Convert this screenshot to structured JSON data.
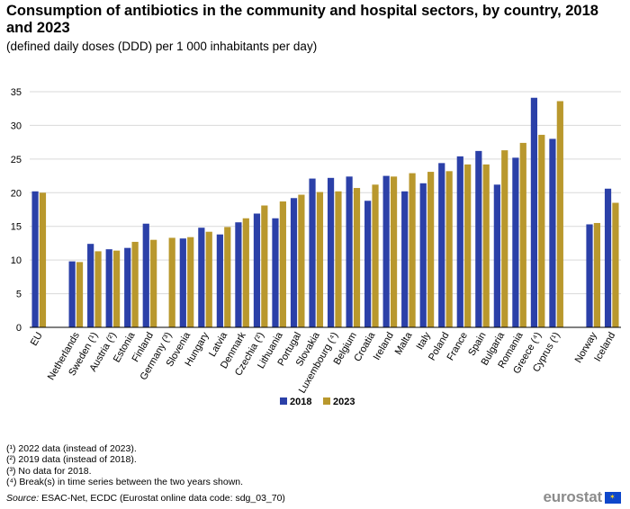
{
  "chart_data": {
    "type": "bar",
    "title": "Consumption of antibiotics in the community and hospital sectors, by country, 2018 and 2023",
    "subtitle": "(defined daily doses (DDD) per 1 000 inhabitants per day)",
    "ylim": [
      0,
      35
    ],
    "yticks": [
      0,
      5,
      10,
      15,
      20,
      25,
      30,
      35
    ],
    "grid": true,
    "legend_position": "bottom-center",
    "categories": [
      "EU",
      "",
      "Netherlands",
      "Sweden (¹)",
      "Austria (²)",
      "Estonia",
      "Finland",
      "Germany (³)",
      "Slovenia",
      "Hungary",
      "Latvia",
      "Denmark",
      "Czechia (²)",
      "Lithuania",
      "Portugal",
      "Slovakia",
      "Luxembourg (⁴)",
      "Belgium",
      "Croatia",
      "Ireland",
      "Malta",
      "Italy",
      "Poland",
      "France",
      "Spain",
      "Bulgaria",
      "Romania",
      "Greece (⁴)",
      "Cyprus (¹)",
      "",
      "Norway",
      "Iceland"
    ],
    "series": [
      {
        "name": "2018",
        "color": "#2b40a8",
        "values": [
          20.2,
          null,
          9.8,
          12.4,
          11.6,
          11.8,
          15.4,
          null,
          13.2,
          14.8,
          13.8,
          15.6,
          16.9,
          16.2,
          19.2,
          22.1,
          22.2,
          22.4,
          18.8,
          22.5,
          20.2,
          21.4,
          24.4,
          25.4,
          26.2,
          21.2,
          25.2,
          34.1,
          28.0,
          null,
          15.3,
          20.6
        ]
      },
      {
        "name": "2023",
        "color": "#b9982d",
        "values": [
          20.0,
          null,
          9.7,
          11.3,
          11.4,
          12.7,
          13.0,
          13.3,
          13.4,
          14.2,
          14.9,
          16.2,
          18.1,
          18.7,
          19.7,
          20.1,
          20.2,
          20.7,
          21.2,
          22.4,
          22.9,
          23.1,
          23.2,
          24.2,
          24.2,
          26.3,
          27.4,
          28.6,
          33.6,
          null,
          15.5,
          18.5
        ]
      }
    ]
  },
  "footnotes": [
    "(¹) 2022 data (instead of 2023).",
    "(²) 2019 data (instead of 2018).",
    "(³) No data for 2018.",
    "(⁴) Break(s) in time series between the two years shown."
  ],
  "source": {
    "label": "Source:",
    "text": "ESAC-Net, ECDC (Eurostat online data code: sdg_03_70)"
  },
  "logo": {
    "text": "eurostat",
    "flag_color": "#0e47cb"
  }
}
